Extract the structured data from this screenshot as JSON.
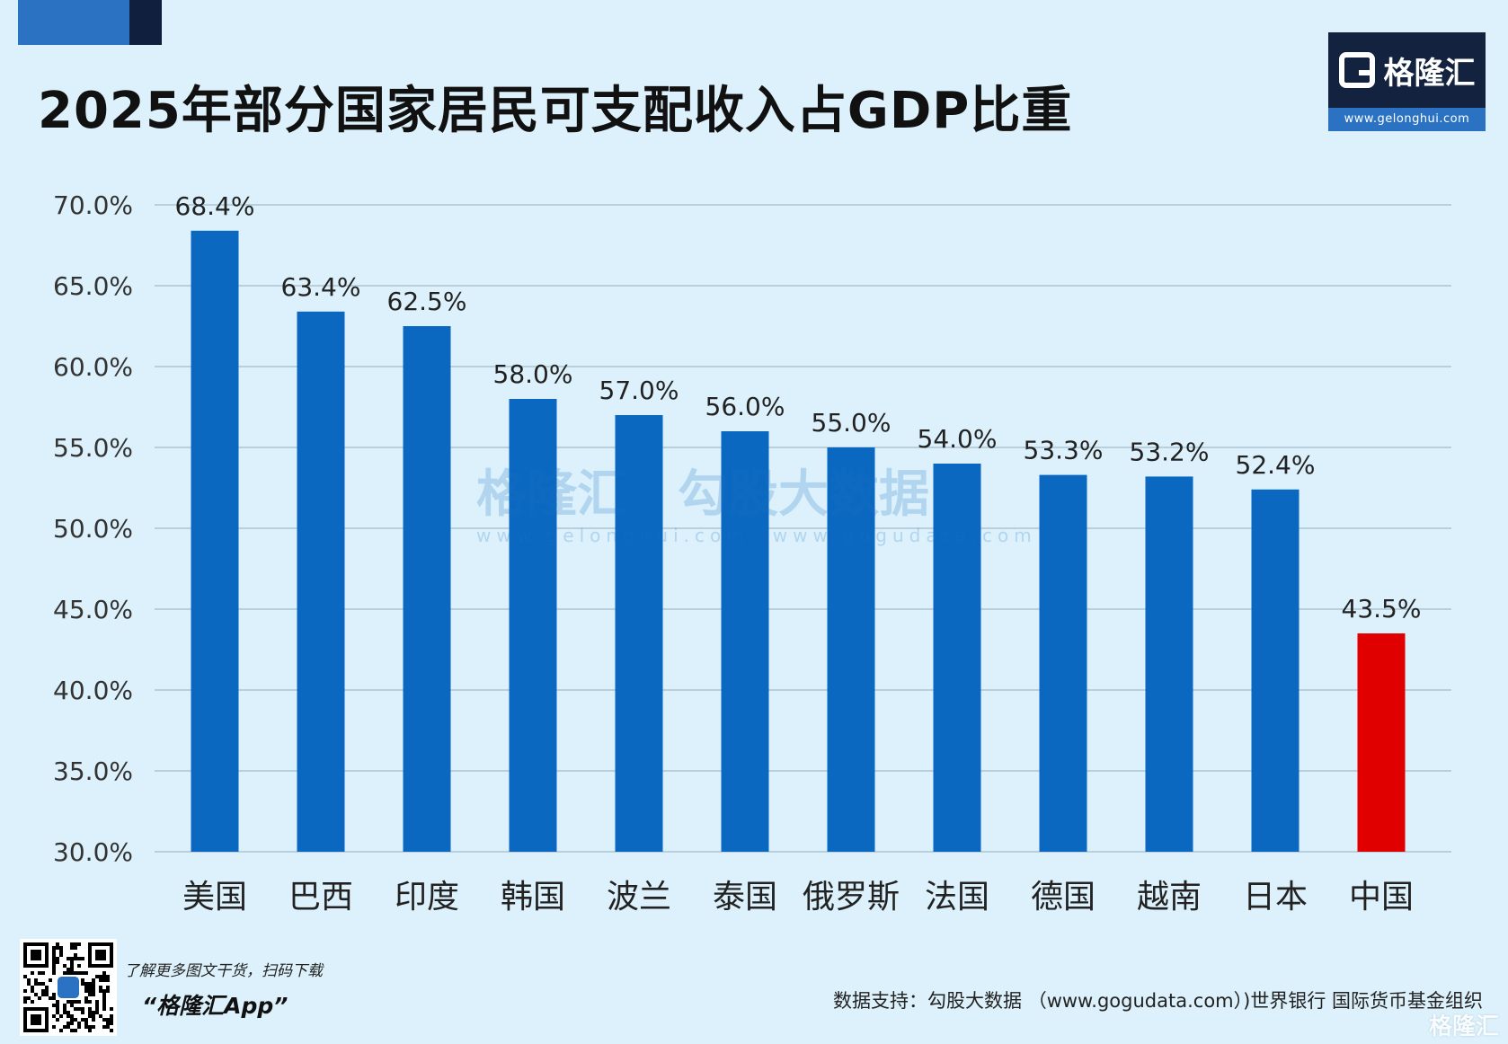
{
  "colors": {
    "background": "#dcf1fb",
    "bar": "#0a68c0",
    "bar_highlight": "#e00000",
    "grid": "#b9cfdc",
    "accent_blue": "#2b73c2",
    "accent_dark": "#0f1f3d",
    "logo_bg": "#13223f",
    "logo_url_bg": "#2b73c2"
  },
  "header": {
    "title": "2025年部分国家居民可支配收入占GDP比重"
  },
  "logo": {
    "name": "格隆汇",
    "url": "www.gelonghui.com"
  },
  "watermark": {
    "brand": "格隆汇",
    "brand_url": "www.gelonghui.com",
    "data_brand": "勾股大数据",
    "data_url": "www.gogudata.com"
  },
  "chart_data": {
    "type": "bar",
    "title": "2025年部分国家居民可支配收入占GDP比重",
    "xlabel": "",
    "ylabel": "",
    "categories": [
      "美国",
      "巴西",
      "印度",
      "韩国",
      "波兰",
      "泰国",
      "俄罗斯",
      "法国",
      "德国",
      "越南",
      "日本",
      "中国"
    ],
    "values": [
      68.4,
      63.4,
      62.5,
      58.0,
      57.0,
      56.0,
      55.0,
      54.0,
      53.3,
      53.2,
      52.4,
      43.5
    ],
    "value_labels": [
      "68.4%",
      "63.4%",
      "62.5%",
      "58.0%",
      "57.0%",
      "56.0%",
      "55.0%",
      "54.0%",
      "53.3%",
      "53.2%",
      "52.4%",
      "43.5%"
    ],
    "highlight_category": "中国",
    "ylim": [
      30,
      70
    ],
    "yticks": [
      70,
      65,
      60,
      55,
      50,
      45,
      40,
      35,
      30
    ],
    "ytick_labels": [
      "70.0%",
      "65.0%",
      "60.0%",
      "55.0%",
      "50.0%",
      "45.0%",
      "40.0%",
      "35.0%",
      "30.0%"
    ],
    "grid": true,
    "legend": "none"
  },
  "footer": {
    "promo_text": "了解更多图文干货，扫码下载",
    "app_name": "“格隆汇App”",
    "source": "数据支持：勾股大数据 （www.gogudata.com）)世界银行  国际货币基金组织",
    "corner_mark": "格隆汇"
  }
}
